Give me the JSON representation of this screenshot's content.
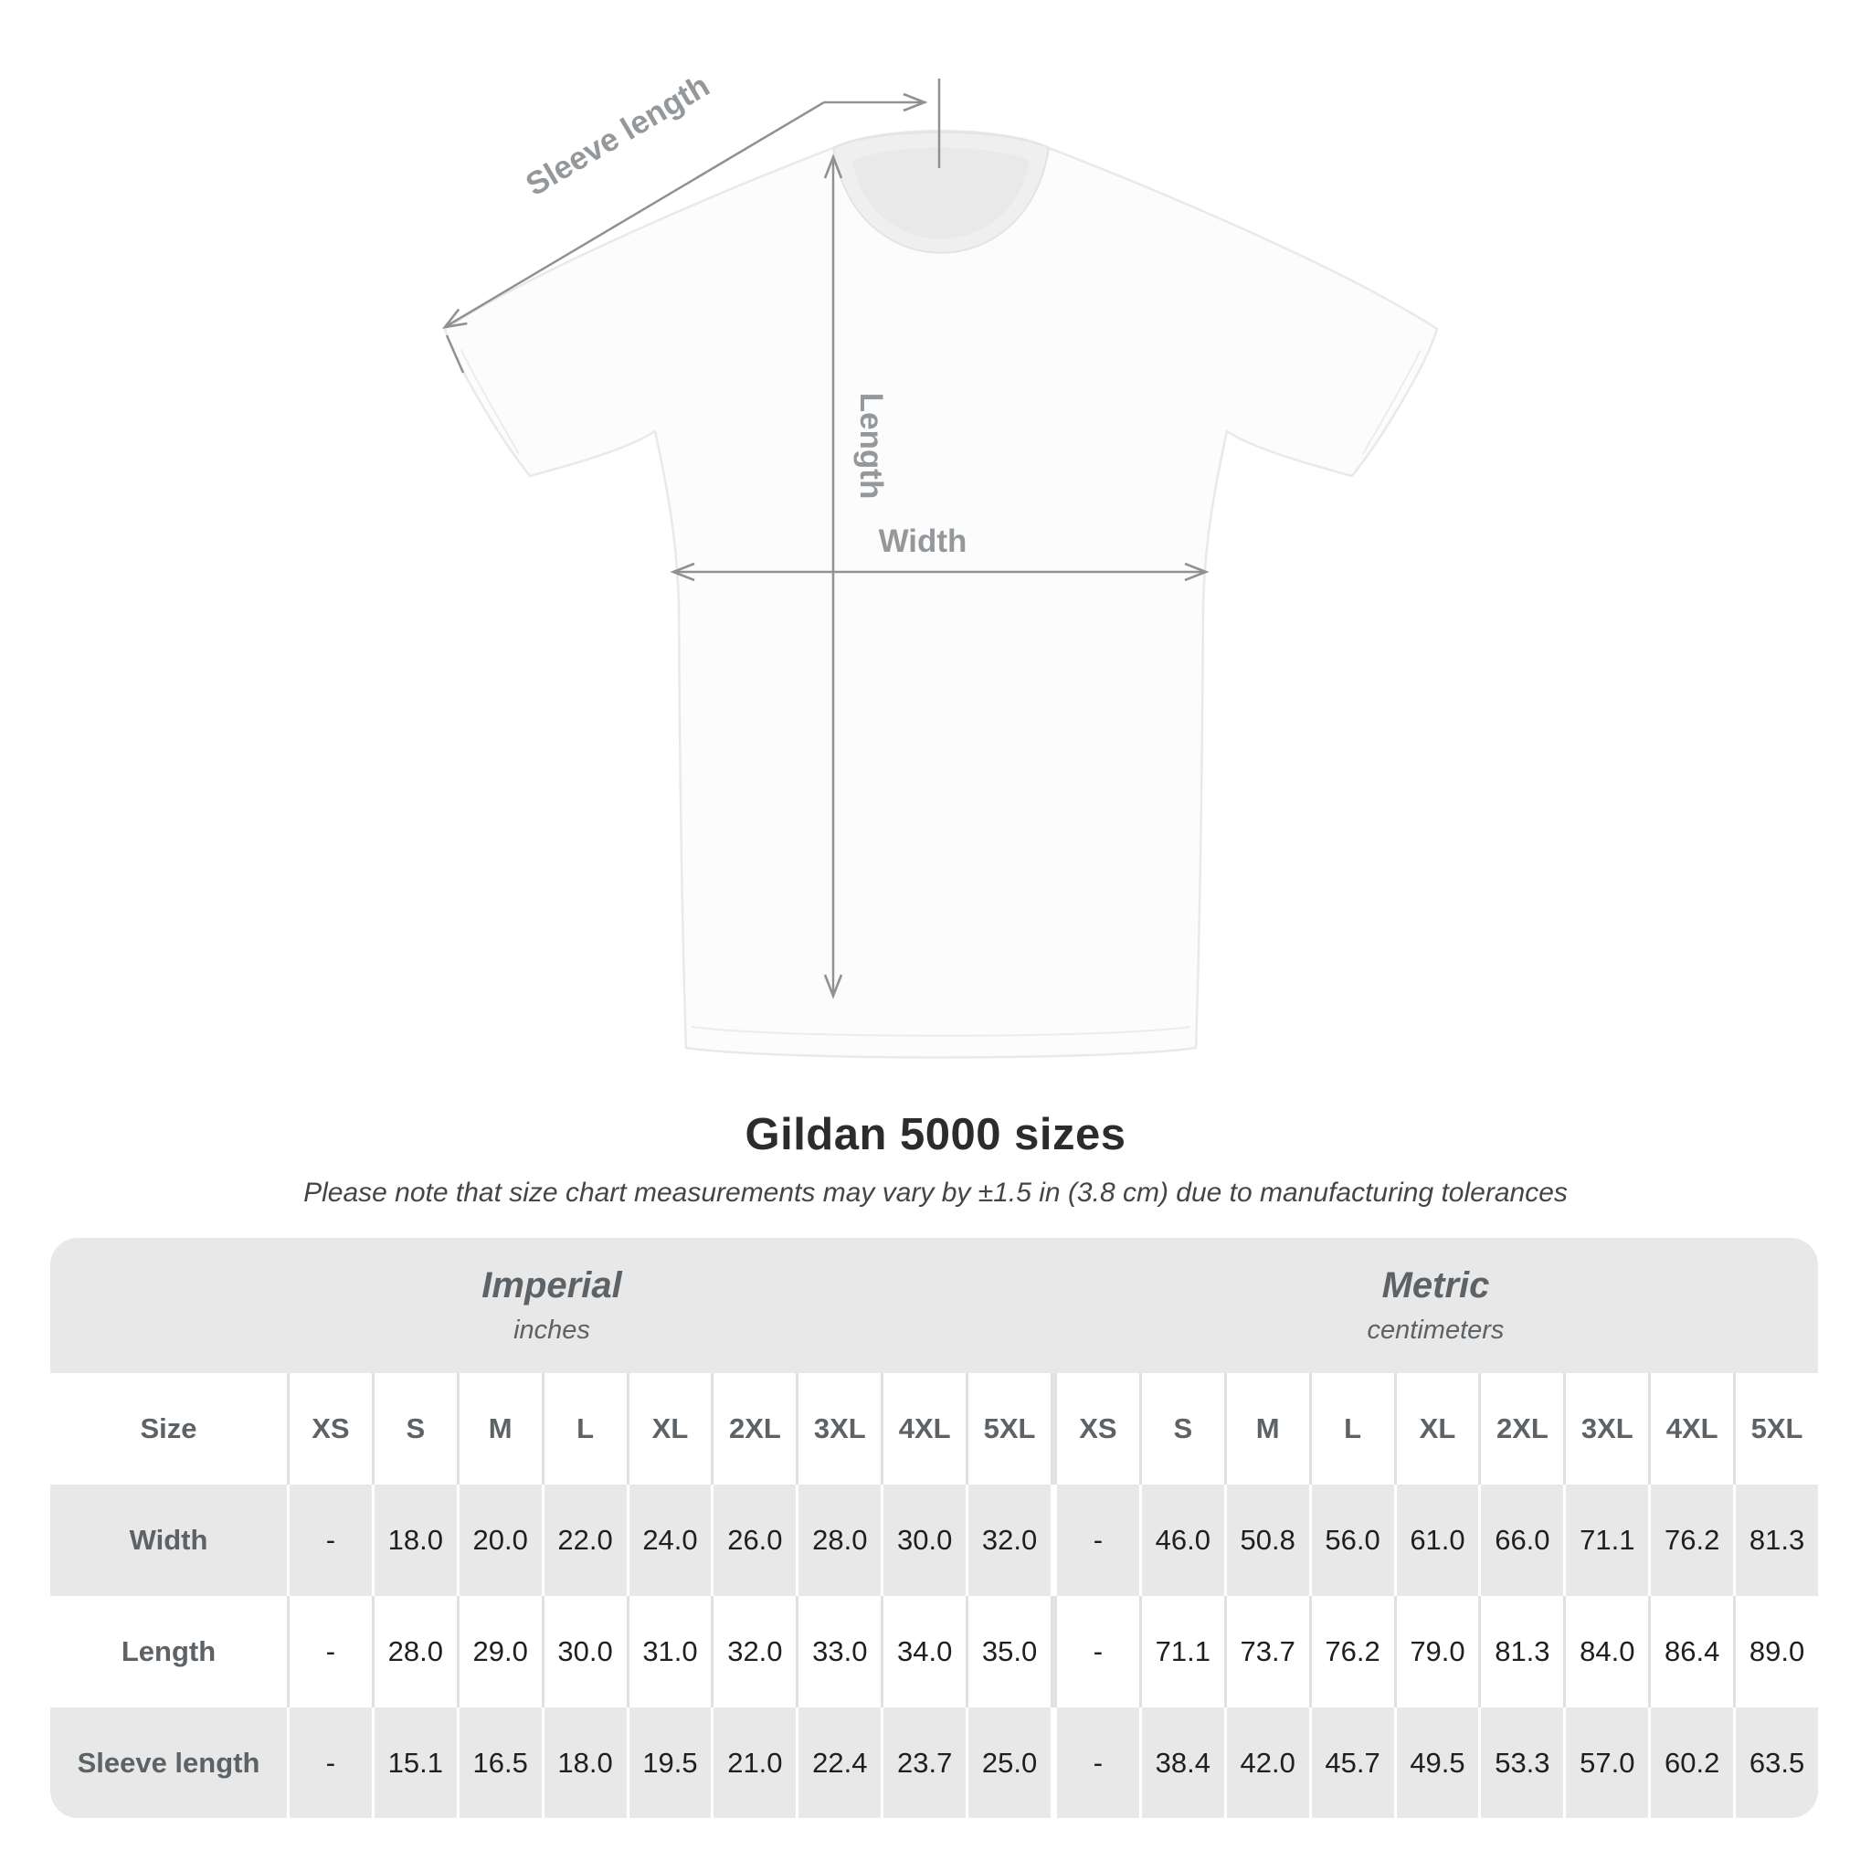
{
  "title": "Gildan 5000 sizes",
  "subtitle": "Please note that size chart measurements may vary by ±1.5 in (3.8 cm) due to manufacturing tolerances",
  "diagram": {
    "sleeve_length_label": "Sleeve length",
    "length_label": "Length",
    "width_label": "Width"
  },
  "table": {
    "size_header": "Size",
    "groups": [
      {
        "name": "Imperial",
        "unit": "inches"
      },
      {
        "name": "Metric",
        "unit": "centimeters"
      }
    ],
    "sizes": [
      "XS",
      "S",
      "M",
      "L",
      "XL",
      "2XL",
      "3XL",
      "4XL",
      "5XL"
    ],
    "rows": [
      {
        "label": "Width",
        "imperial": [
          "-",
          "18.0",
          "20.0",
          "22.0",
          "24.0",
          "26.0",
          "28.0",
          "30.0",
          "32.0"
        ],
        "metric": [
          "-",
          "46.0",
          "50.8",
          "56.0",
          "61.0",
          "66.0",
          "71.1",
          "76.2",
          "81.3"
        ]
      },
      {
        "label": "Length",
        "imperial": [
          "-",
          "28.0",
          "29.0",
          "30.0",
          "31.0",
          "32.0",
          "33.0",
          "34.0",
          "35.0"
        ],
        "metric": [
          "-",
          "71.1",
          "73.7",
          "76.2",
          "79.0",
          "81.3",
          "84.0",
          "86.4",
          "89.0"
        ]
      },
      {
        "label": "Sleeve length",
        "imperial": [
          "-",
          "15.1",
          "16.5",
          "18.0",
          "19.5",
          "21.0",
          "22.4",
          "23.7",
          "25.0"
        ],
        "metric": [
          "-",
          "38.4",
          "42.0",
          "45.7",
          "49.5",
          "53.3",
          "57.0",
          "60.2",
          "63.5"
        ]
      }
    ]
  },
  "colors": {
    "row_gray": "#e8e8e8",
    "separator_on_white_rows": "#e1e1e1",
    "heading_gray": "#5c6266",
    "value_dark": "#1f1f1f",
    "measure_line_gray": "#8f9294",
    "measure_label_gray": "#95989b"
  },
  "chart_data": {
    "type": "table",
    "title": "Gildan 5000 sizes",
    "note": "Please note that size chart measurements may vary by ±1.5 in (3.8 cm) due to manufacturing tolerances",
    "column_groups": [
      {
        "name": "Imperial",
        "unit": "inches",
        "sizes": [
          "XS",
          "S",
          "M",
          "L",
          "XL",
          "2XL",
          "3XL",
          "4XL",
          "5XL"
        ]
      },
      {
        "name": "Metric",
        "unit": "centimeters",
        "sizes": [
          "XS",
          "S",
          "M",
          "L",
          "XL",
          "2XL",
          "3XL",
          "4XL",
          "5XL"
        ]
      }
    ],
    "measurements": [
      {
        "name": "Width",
        "imperial_in": [
          null,
          18.0,
          20.0,
          22.0,
          24.0,
          26.0,
          28.0,
          30.0,
          32.0
        ],
        "metric_cm": [
          null,
          46.0,
          50.8,
          56.0,
          61.0,
          66.0,
          71.1,
          76.2,
          81.3
        ]
      },
      {
        "name": "Length",
        "imperial_in": [
          null,
          28.0,
          29.0,
          30.0,
          31.0,
          32.0,
          33.0,
          34.0,
          35.0
        ],
        "metric_cm": [
          null,
          71.1,
          73.7,
          76.2,
          79.0,
          81.3,
          84.0,
          86.4,
          89.0
        ]
      },
      {
        "name": "Sleeve length",
        "imperial_in": [
          null,
          15.1,
          16.5,
          18.0,
          19.5,
          21.0,
          22.4,
          23.7,
          25.0
        ],
        "metric_cm": [
          null,
          38.4,
          42.0,
          45.7,
          49.5,
          53.3,
          57.0,
          60.2,
          63.5
        ]
      }
    ]
  }
}
